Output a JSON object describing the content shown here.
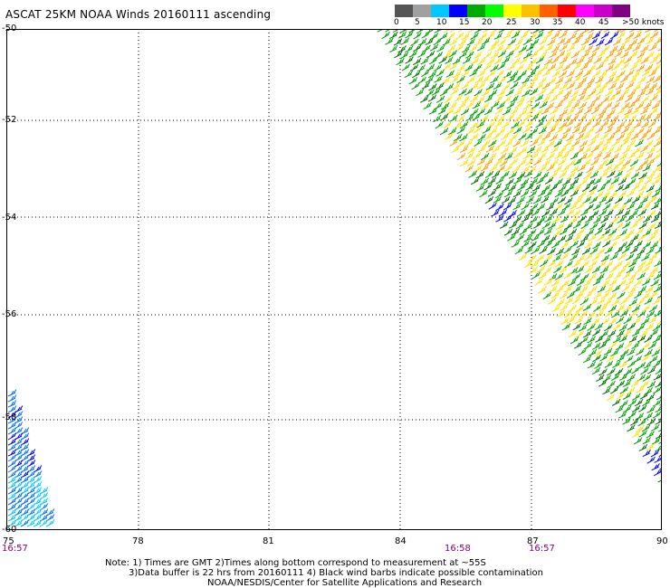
{
  "header": {
    "title": "ASCAT 25KM NOAA Winds 20160111 ascending"
  },
  "legend": {
    "colors": [
      "#555555",
      "#a0a0a0",
      "#00c8ff",
      "#0000ff",
      "#00aa00",
      "#00ff00",
      "#ffff00",
      "#ffc000",
      "#ff6000",
      "#ff0000",
      "#ff00ff",
      "#c800c8",
      "#800080"
    ],
    "labels": [
      "0",
      "5",
      "10",
      "15",
      "20",
      "25",
      "30",
      "35",
      "40",
      "45",
      ">50 knots"
    ]
  },
  "map": {
    "latitude_labels": [
      "-50",
      "-52",
      "-54",
      "-56",
      "-58",
      "-60"
    ],
    "longitude_labels": [
      "75",
      "78",
      "81",
      "84",
      "87",
      "90"
    ],
    "time_labels": [
      "16:57",
      "16:58",
      "16:57"
    ],
    "colors": {
      "gridline": "#000000",
      "barb_green": "#00a000",
      "barb_darkgreen": "#007000",
      "barb_yellow": "#ffe000",
      "barb_orange": "#ffa000",
      "barb_blue": "#0000ff",
      "barb_cyan": "#00c8ff",
      "barb_midblue": "#0070ff",
      "time_label": "#800080"
    }
  },
  "footer": {
    "line1": "Note: 1) Times are GMT 2)Times along bottom correspond to measurement at ~55S",
    "line2": "3)Data buffer is 22 hrs from 20160111 4) Black wind barbs indicate possible contamination",
    "line3": "NOAA/NESDIS/Center for Satellite Applications and Research"
  }
}
